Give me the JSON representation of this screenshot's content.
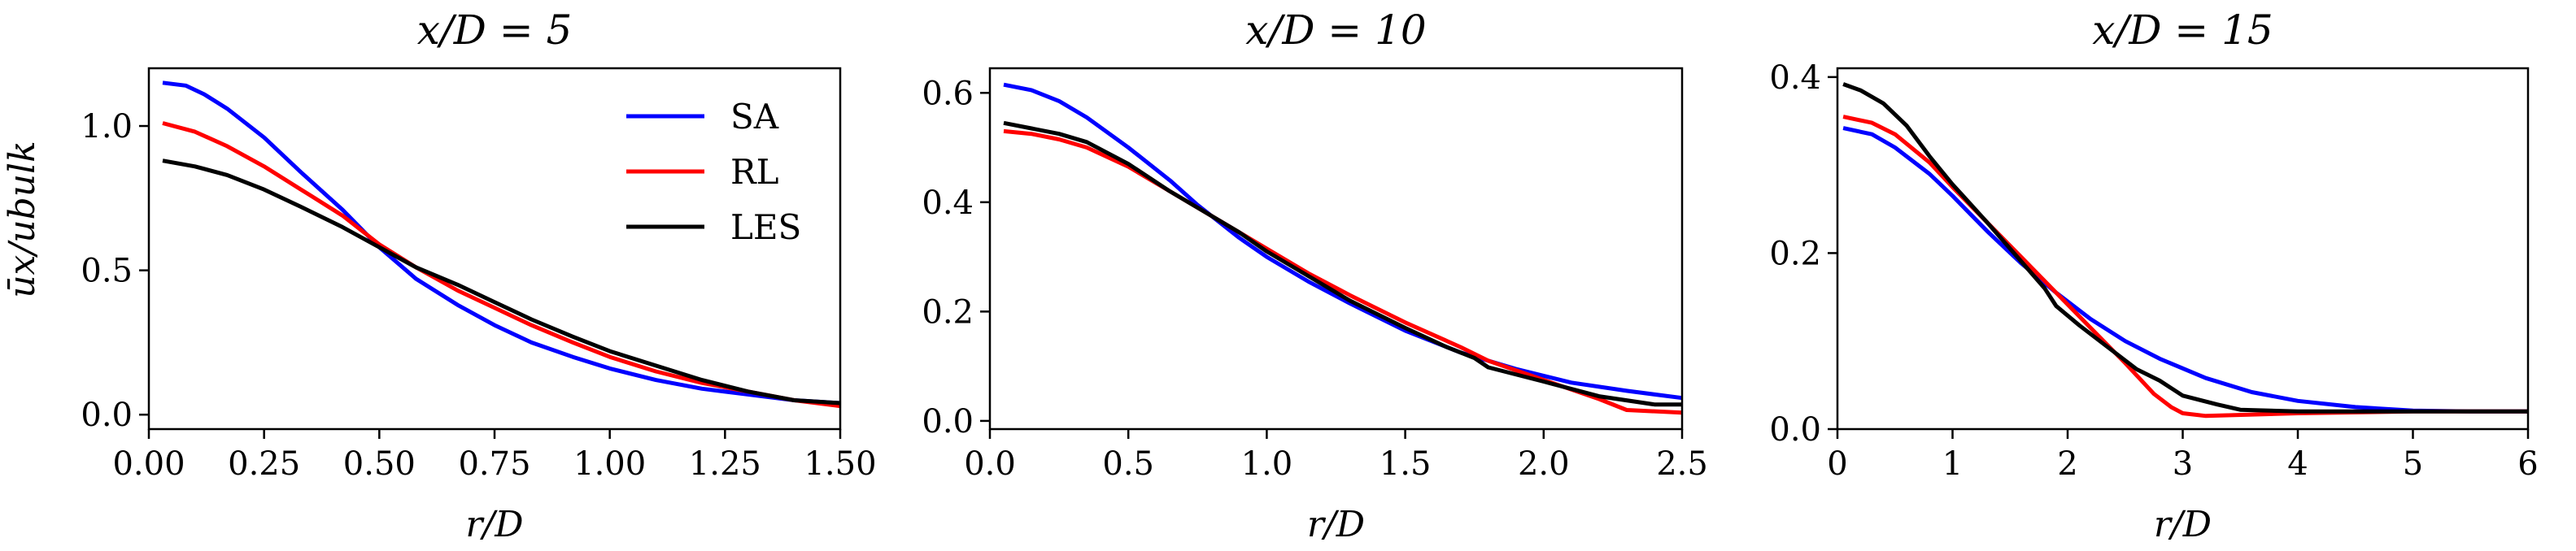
{
  "figure": {
    "ylabel": "ūx/ubulk"
  },
  "chart_data": [
    {
      "type": "line",
      "title": "x/D = 5",
      "xlabel": "r/D",
      "ylabel": "ūx/ubulk",
      "xlim": [
        0.0,
        1.5
      ],
      "ylim": [
        -0.05,
        1.2
      ],
      "xticks": [
        0.0,
        0.25,
        0.5,
        0.75,
        1.0,
        1.25,
        1.5
      ],
      "xtick_labels": [
        "0.00",
        "0.25",
        "0.50",
        "0.75",
        "1.00",
        "1.25",
        "1.50"
      ],
      "yticks": [
        0.0,
        0.5,
        1.0
      ],
      "ytick_labels": [
        "0.0",
        "0.5",
        "1.0"
      ],
      "legend": {
        "placement": "top-right",
        "entries": [
          "SA",
          "RL",
          "LES"
        ]
      },
      "grid": false,
      "series": [
        {
          "name": "SA",
          "color": "#0000ff",
          "x": [
            0.03,
            0.08,
            0.12,
            0.17,
            0.25,
            0.33,
            0.42,
            0.5,
            0.58,
            0.67,
            0.75,
            0.83,
            0.92,
            1.0,
            1.1,
            1.2,
            1.3,
            1.4,
            1.5
          ],
          "y": [
            1.15,
            1.14,
            1.11,
            1.06,
            0.96,
            0.84,
            0.71,
            0.58,
            0.47,
            0.38,
            0.31,
            0.25,
            0.2,
            0.16,
            0.12,
            0.09,
            0.07,
            0.05,
            0.04
          ]
        },
        {
          "name": "RL",
          "color": "#ff0000",
          "x": [
            0.03,
            0.1,
            0.17,
            0.25,
            0.33,
            0.42,
            0.5,
            0.58,
            0.67,
            0.75,
            0.83,
            0.92,
            1.0,
            1.1,
            1.2,
            1.3,
            1.4,
            1.5
          ],
          "y": [
            1.01,
            0.98,
            0.93,
            0.86,
            0.78,
            0.69,
            0.59,
            0.51,
            0.43,
            0.37,
            0.31,
            0.25,
            0.2,
            0.15,
            0.11,
            0.08,
            0.05,
            0.03
          ]
        },
        {
          "name": "LES",
          "color": "#000000",
          "x": [
            0.03,
            0.1,
            0.17,
            0.25,
            0.33,
            0.42,
            0.5,
            0.58,
            0.67,
            0.75,
            0.83,
            0.92,
            1.0,
            1.1,
            1.2,
            1.3,
            1.4,
            1.5
          ],
          "y": [
            0.88,
            0.86,
            0.83,
            0.78,
            0.72,
            0.65,
            0.58,
            0.51,
            0.45,
            0.39,
            0.33,
            0.27,
            0.22,
            0.17,
            0.12,
            0.08,
            0.05,
            0.04
          ]
        }
      ]
    },
    {
      "type": "line",
      "title": "x/D = 10",
      "xlabel": "r/D",
      "xlim": [
        0.0,
        2.5
      ],
      "ylim": [
        -0.015,
        0.645
      ],
      "xticks": [
        0.0,
        0.5,
        1.0,
        1.5,
        2.0,
        2.5
      ],
      "xtick_labels": [
        "0.0",
        "0.5",
        "1.0",
        "1.5",
        "2.0",
        "2.5"
      ],
      "yticks": [
        0.0,
        0.2,
        0.4,
        0.6
      ],
      "ytick_labels": [
        "0.0",
        "0.2",
        "0.4",
        "0.6"
      ],
      "grid": false,
      "series": [
        {
          "name": "SA",
          "color": "#0000ff",
          "x": [
            0.05,
            0.15,
            0.25,
            0.35,
            0.5,
            0.65,
            0.75,
            0.9,
            1.0,
            1.15,
            1.3,
            1.5,
            1.7,
            1.9,
            2.1,
            2.3,
            2.5
          ],
          "y": [
            0.615,
            0.605,
            0.585,
            0.555,
            0.5,
            0.44,
            0.395,
            0.335,
            0.3,
            0.255,
            0.215,
            0.165,
            0.125,
            0.095,
            0.07,
            0.055,
            0.042
          ]
        },
        {
          "name": "RL",
          "color": "#ff0000",
          "x": [
            0.05,
            0.15,
            0.25,
            0.35,
            0.5,
            0.65,
            0.75,
            0.9,
            1.0,
            1.15,
            1.3,
            1.5,
            1.7,
            1.8,
            2.0,
            2.2,
            2.3,
            2.5
          ],
          "y": [
            0.53,
            0.525,
            0.515,
            0.5,
            0.465,
            0.42,
            0.39,
            0.345,
            0.315,
            0.27,
            0.23,
            0.18,
            0.135,
            0.11,
            0.075,
            0.04,
            0.02,
            0.015
          ]
        },
        {
          "name": "LES",
          "color": "#000000",
          "x": [
            0.05,
            0.15,
            0.25,
            0.35,
            0.5,
            0.65,
            0.75,
            0.9,
            1.0,
            1.15,
            1.3,
            1.5,
            1.65,
            1.75,
            1.8,
            2.0,
            2.2,
            2.4,
            2.5
          ],
          "y": [
            0.545,
            0.535,
            0.525,
            0.51,
            0.47,
            0.42,
            0.39,
            0.345,
            0.31,
            0.265,
            0.22,
            0.17,
            0.135,
            0.115,
            0.098,
            0.072,
            0.045,
            0.03,
            0.03
          ]
        }
      ]
    },
    {
      "type": "line",
      "title": "x/D = 15",
      "xlabel": "r/D",
      "xlim": [
        0,
        6
      ],
      "ylim": [
        0.0,
        0.41
      ],
      "xticks": [
        0,
        1,
        2,
        3,
        4,
        5,
        6
      ],
      "xtick_labels": [
        "0",
        "1",
        "2",
        "3",
        "4",
        "5",
        "6"
      ],
      "yticks": [
        0.0,
        0.2,
        0.4
      ],
      "ytick_labels": [
        "0.0",
        "0.2",
        "0.4"
      ],
      "grid": false,
      "series": [
        {
          "name": "SA",
          "color": "#0000ff",
          "x": [
            0.05,
            0.3,
            0.5,
            0.8,
            1.0,
            1.3,
            1.6,
            1.9,
            2.2,
            2.5,
            2.8,
            3.2,
            3.6,
            4.0,
            4.5,
            5.0,
            5.5,
            6.0
          ],
          "y": [
            0.342,
            0.335,
            0.32,
            0.29,
            0.265,
            0.225,
            0.188,
            0.155,
            0.125,
            0.1,
            0.08,
            0.058,
            0.042,
            0.032,
            0.025,
            0.021,
            0.02,
            0.02
          ]
        },
        {
          "name": "RL",
          "color": "#ff0000",
          "x": [
            0.05,
            0.3,
            0.5,
            0.8,
            1.0,
            1.3,
            1.6,
            1.9,
            2.2,
            2.5,
            2.75,
            2.9,
            3.0,
            3.2,
            4.0,
            5.0,
            6.0
          ],
          "y": [
            0.355,
            0.348,
            0.335,
            0.303,
            0.275,
            0.235,
            0.195,
            0.155,
            0.115,
            0.075,
            0.04,
            0.025,
            0.018,
            0.015,
            0.018,
            0.02,
            0.02
          ]
        },
        {
          "name": "LES",
          "color": "#000000",
          "x": [
            0.05,
            0.2,
            0.4,
            0.6,
            0.8,
            1.0,
            1.3,
            1.6,
            1.8,
            1.9,
            2.1,
            2.4,
            2.6,
            2.8,
            3.0,
            3.3,
            3.5,
            4.0,
            5.0,
            6.0
          ],
          "y": [
            0.392,
            0.385,
            0.37,
            0.345,
            0.31,
            0.278,
            0.235,
            0.19,
            0.16,
            0.14,
            0.118,
            0.088,
            0.068,
            0.055,
            0.038,
            0.028,
            0.022,
            0.02,
            0.02,
            0.02
          ]
        }
      ]
    }
  ]
}
